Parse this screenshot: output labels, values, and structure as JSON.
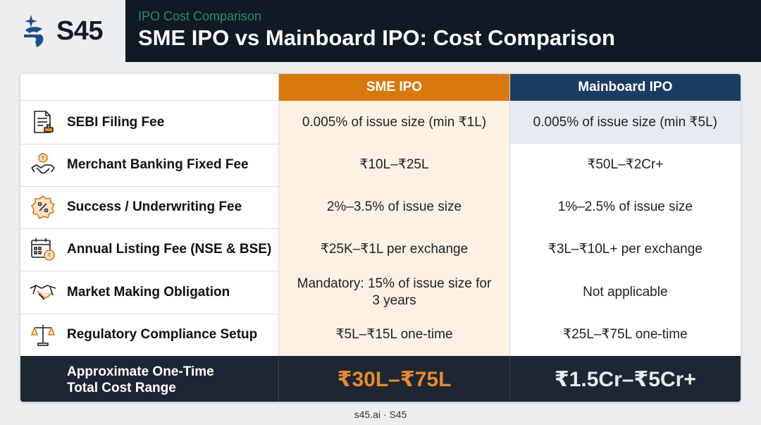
{
  "brand": {
    "logo_text": "S45"
  },
  "header": {
    "eyebrow": "IPO Cost Comparison",
    "title": "SME IPO vs Mainboard IPO: Cost Comparison"
  },
  "table": {
    "columns": {
      "sme": "SME IPO",
      "mainboard": "Mainboard IPO"
    },
    "rows": [
      {
        "label": "SEBI Filing Fee",
        "icon": "document-stamp-icon",
        "sme": "0.005% of issue size (min ₹1L)",
        "mainboard": "0.005% of issue size (min ₹5L)"
      },
      {
        "label": "Merchant Banking Fixed Fee",
        "icon": "rupee-handshake-icon",
        "sme": "₹10L–₹25L",
        "mainboard": "₹50L–₹2Cr+"
      },
      {
        "label": "Success / Underwriting Fee",
        "icon": "percent-badge-icon",
        "sme": "2%–3.5% of issue size",
        "mainboard": "1%–2.5% of issue size"
      },
      {
        "label": "Annual Listing Fee (NSE & BSE)",
        "icon": "calendar-rupee-icon",
        "sme": "₹25K–₹1L per exchange",
        "mainboard": "₹3L–₹10L+ per exchange"
      },
      {
        "label": "Market Making Obligation",
        "icon": "handshake-icon",
        "sme": "Mandatory: 15% of issue size for 3 years",
        "mainboard": "Not applicable"
      },
      {
        "label": "Regulatory Compliance Setup",
        "icon": "scales-icon",
        "sme": "₹5L–₹15L one-time",
        "mainboard": "₹25L–₹75L one-time"
      }
    ],
    "total": {
      "label_line1": "Approximate One-Time",
      "label_line2": "Total Cost Range",
      "sme": "₹30L–₹75L",
      "mainboard": "₹1.5Cr–₹5Cr+"
    }
  },
  "footer": {
    "text": "s45.ai · S45"
  },
  "colors": {
    "header_bg": "#0f1a24",
    "eyebrow": "#2d8c6b",
    "sme_accent": "#d9780f",
    "mainboard_accent": "#1b3c61",
    "icon_accent": "#d9780f"
  }
}
